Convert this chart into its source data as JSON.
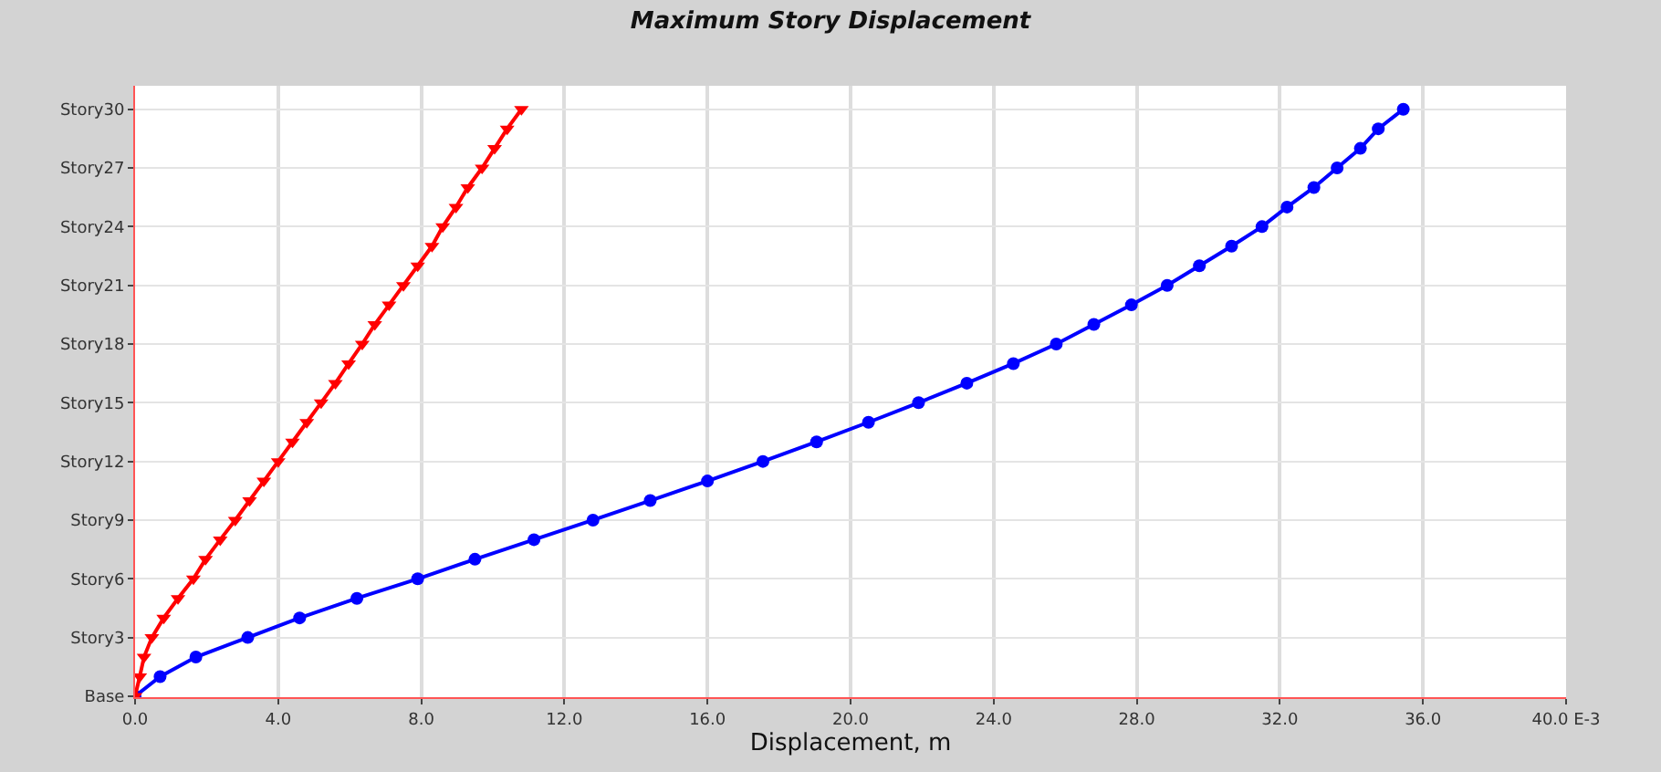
{
  "chart_data": {
    "type": "line",
    "orientation": "horizontal",
    "title": "Maximum Story Displacement",
    "xlabel": "Displacement, m",
    "xlim": [
      0,
      40
    ],
    "xticks": [
      {
        "value": 0,
        "label": "0.0"
      },
      {
        "value": 4,
        "label": "4.0"
      },
      {
        "value": 8,
        "label": "8.0"
      },
      {
        "value": 12,
        "label": "12.0"
      },
      {
        "value": 16,
        "label": "16.0"
      },
      {
        "value": 20,
        "label": "20.0"
      },
      {
        "value": 24,
        "label": "24.0"
      },
      {
        "value": 28,
        "label": "28.0"
      },
      {
        "value": 32,
        "label": "32.0"
      },
      {
        "value": 36,
        "label": "36.0"
      },
      {
        "value": 40,
        "label": "40.0 E-3"
      }
    ],
    "categories": [
      "Story30",
      null,
      null,
      "Story27",
      null,
      null,
      "Story24",
      null,
      null,
      "Story21",
      null,
      null,
      "Story18",
      null,
      null,
      "Story15",
      null,
      null,
      "Story12",
      null,
      null,
      "Story9",
      null,
      null,
      "Story6",
      null,
      null,
      "Story3",
      null,
      null,
      "Base"
    ],
    "grid": true,
    "line_style": "solid",
    "series": [
      {
        "color": "#0000ff",
        "marker": "circle",
        "values": [
          35.45,
          34.75,
          34.25,
          33.6,
          32.95,
          32.2,
          31.5,
          30.65,
          29.75,
          28.85,
          27.85,
          26.8,
          25.75,
          24.55,
          23.25,
          21.9,
          20.5,
          19.05,
          17.55,
          16.0,
          14.4,
          12.8,
          11.15,
          9.5,
          7.9,
          6.2,
          4.6,
          3.15,
          1.7,
          0.7,
          0
        ]
      },
      {
        "color": "#ff0000",
        "marker": "triangle",
        "values": [
          10.8,
          10.4,
          10.05,
          9.7,
          9.3,
          8.97,
          8.6,
          8.3,
          7.9,
          7.5,
          7.1,
          6.7,
          6.35,
          5.97,
          5.6,
          5.2,
          4.8,
          4.4,
          4.0,
          3.6,
          3.2,
          2.8,
          2.38,
          1.97,
          1.63,
          1.2,
          0.8,
          0.47,
          0.25,
          0.13,
          0
        ]
      }
    ]
  }
}
